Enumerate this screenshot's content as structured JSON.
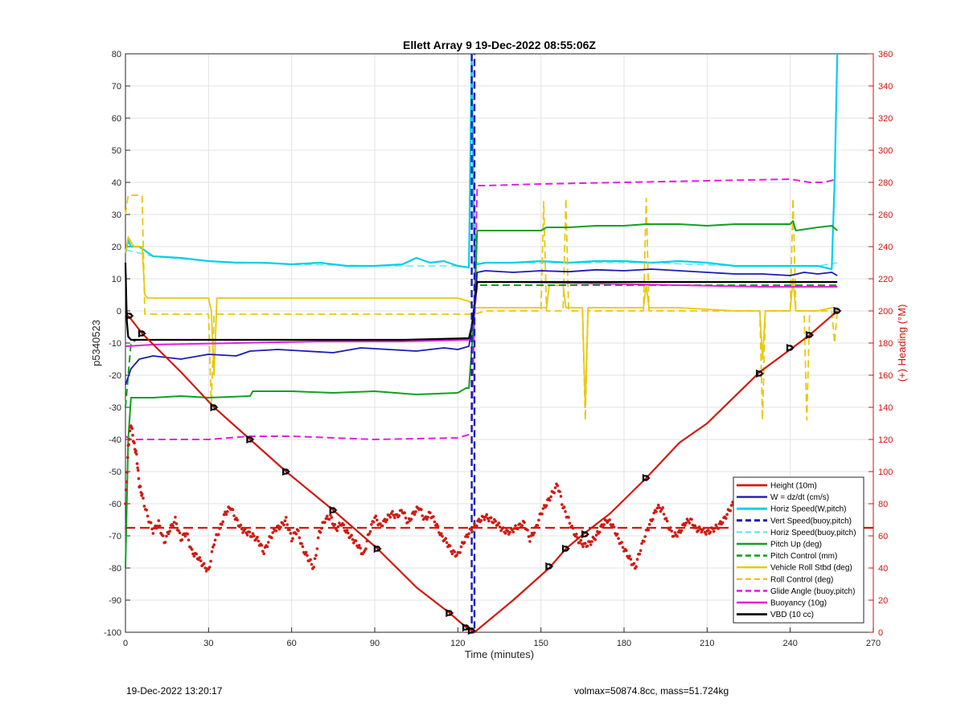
{
  "footer": {
    "timestamp": "19-Dec-2022 13:20:17",
    "params": "volmax=50874.8cc, mass=51.724kg"
  },
  "chart_data": {
    "type": "line",
    "title": "Ellett Array 9 19-Dec-2022 08:55:06Z",
    "xlabel": "Time (minutes)",
    "ylabel": "p5340523",
    "ylabel_right": "(+) Heading (°M)",
    "xlim": [
      0,
      270
    ],
    "ylim": [
      -100,
      80
    ],
    "ylim_right": [
      0,
      360
    ],
    "xticks": [
      "0",
      "30",
      "60",
      "90",
      "120",
      "150",
      "180",
      "210",
      "240",
      "270"
    ],
    "yticks": [
      "-100",
      "-90",
      "-80",
      "-70",
      "-60",
      "-50",
      "-40",
      "-30",
      "-20",
      "-10",
      "0",
      "10",
      "20",
      "30",
      "40",
      "50",
      "60",
      "70",
      "80"
    ],
    "yticks_right": [
      "0",
      "20",
      "40",
      "60",
      "80",
      "100",
      "120",
      "140",
      "160",
      "180",
      "200",
      "220",
      "240",
      "260",
      "280",
      "300",
      "320",
      "340",
      "360"
    ],
    "grid": true,
    "legend_position": "bottom-right",
    "series": [
      {
        "name": "Height (10m)",
        "color": "#d01a10",
        "style": "solid",
        "width": 2.2,
        "x": [
          0,
          1.5,
          6,
          20,
          32,
          45,
          58,
          75,
          91,
          105,
          117,
          123,
          126,
          140,
          153,
          159,
          166,
          175,
          188,
          200,
          210,
          229,
          240,
          247,
          257
        ],
        "y": [
          -1,
          -2,
          -7,
          -19,
          -30,
          -40,
          -50,
          -62,
          -74,
          -86,
          -94,
          -98.5,
          -100,
          -90,
          -80,
          -74,
          -69,
          -63,
          -52,
          -41,
          -35,
          -19,
          -12,
          -7.5,
          0
        ],
        "markers": [
          [
            1.5,
            -1.5
          ],
          [
            6,
            -7
          ],
          [
            32,
            -30
          ],
          [
            45,
            -40
          ],
          [
            58,
            -50
          ],
          [
            75,
            -62
          ],
          [
            91,
            -74
          ],
          [
            117,
            -94
          ],
          [
            123,
            -98.5
          ],
          [
            125,
            -99.5
          ],
          [
            153,
            -79.5
          ],
          [
            159,
            -74
          ],
          [
            166,
            -69.5
          ],
          [
            188,
            -52
          ],
          [
            229,
            -19.5
          ],
          [
            240,
            -11.5
          ],
          [
            247,
            -7.5
          ],
          [
            257,
            0
          ]
        ]
      },
      {
        "name": "W = dz/dt (cm/s)",
        "color": "#1a1ab8",
        "style": "solid",
        "width": 1.8,
        "x": [
          0,
          2,
          5,
          10,
          20,
          30,
          40,
          45,
          55,
          65,
          75,
          85,
          95,
          105,
          115,
          120,
          124,
          126,
          127,
          130,
          140,
          150,
          160,
          170,
          180,
          190,
          200,
          210,
          220,
          230,
          240,
          245,
          250,
          255,
          257
        ],
        "y": [
          -23,
          -18,
          -15,
          -14,
          -15,
          -13.5,
          -14,
          -12.5,
          -12,
          -12.5,
          -13,
          -11.5,
          -12,
          -12.5,
          -11.5,
          -12,
          -11,
          0,
          12,
          12.5,
          12,
          12.5,
          12.2,
          12.8,
          12.5,
          13,
          12.5,
          12,
          11.5,
          11.5,
          11,
          12,
          11.5,
          12,
          11
        ]
      },
      {
        "name": "Horiz Speed(W,pitch)",
        "color": "#00d0e8",
        "style": "solid",
        "width": 2.2,
        "x": [
          0,
          1,
          2,
          5,
          10,
          20,
          30,
          40,
          50,
          60,
          70,
          80,
          90,
          100,
          105,
          110,
          115,
          120,
          124,
          125,
          126,
          127,
          130,
          140,
          150,
          160,
          170,
          180,
          190,
          200,
          210,
          220,
          230,
          240,
          250,
          255,
          256,
          257
        ],
        "y": [
          18,
          22,
          20,
          20,
          17,
          16.5,
          15.5,
          15,
          15,
          14.5,
          15,
          14,
          14,
          14.5,
          16.5,
          15,
          15.5,
          14,
          13.5,
          80,
          15,
          14.5,
          15,
          15,
          15.5,
          15,
          15.5,
          15.5,
          15,
          15.5,
          15,
          14,
          14,
          14,
          14,
          13,
          40,
          80
        ]
      },
      {
        "name": "Vert Speed(buoy,pitch)",
        "color": "#1a1ab8",
        "style": "dashed",
        "width": 2.4,
        "x": [
          125,
          125,
          126,
          126
        ],
        "y": [
          80,
          -100,
          -100,
          80
        ]
      },
      {
        "name": "Horiz Speed(buoy,pitch)",
        "color": "#60e8f0",
        "style": "dashed",
        "width": 1.6,
        "x": [
          0,
          10,
          30,
          60,
          90,
          120,
          124,
          126,
          130,
          160,
          190,
          220,
          250,
          257
        ],
        "y": [
          19,
          17,
          15.5,
          14.5,
          14,
          14,
          13.5,
          15,
          15,
          15,
          15,
          14,
          14,
          15
        ]
      },
      {
        "name": "Pitch Up (deg)",
        "color": "#10a020",
        "style": "solid",
        "width": 2,
        "x": [
          0,
          1,
          2,
          4,
          10,
          20,
          30,
          45,
          46,
          60,
          75,
          90,
          105,
          120,
          123,
          124,
          126,
          127,
          130,
          140,
          150,
          152,
          160,
          170,
          180,
          188,
          189,
          200,
          210,
          220,
          230,
          240,
          241,
          242,
          250,
          255,
          257
        ],
        "y": [
          -80,
          -40,
          -27,
          -27,
          -27,
          -26.5,
          -27,
          -26.5,
          -25,
          -25,
          -25.5,
          -25,
          -26,
          -25.5,
          -24,
          -24,
          0,
          25,
          25,
          25,
          25,
          26,
          26,
          26.5,
          26.5,
          27,
          27,
          27,
          26.5,
          27,
          27,
          27,
          28,
          25,
          26,
          26.5,
          25
        ]
      },
      {
        "name": "Pitch Control (mm)",
        "color": "#10a020",
        "style": "dashed",
        "width": 2,
        "x": [
          0,
          2,
          4,
          30,
          60,
          90,
          120,
          124,
          126,
          127,
          140,
          170,
          200,
          230,
          257
        ],
        "y": [
          -30,
          -10,
          -9,
          -9,
          -9,
          -9,
          -9,
          -9,
          0,
          8,
          8,
          8,
          8,
          8,
          8
        ]
      },
      {
        "name": "Vehicle Roll Stbd (deg)",
        "color": "#e8c810",
        "style": "solid",
        "width": 1.8,
        "x": [
          0,
          1,
          3,
          6,
          7,
          8,
          15,
          30,
          31,
          32,
          33,
          45,
          60,
          75,
          90,
          105,
          120,
          124,
          125,
          126,
          130,
          140,
          150,
          152,
          153,
          158,
          159,
          160,
          165,
          166,
          167,
          180,
          187,
          188,
          189,
          200,
          220,
          229,
          230,
          231,
          240,
          241,
          242,
          250,
          255,
          257
        ],
        "y": [
          18,
          23,
          20,
          20,
          5,
          4,
          4,
          4,
          0,
          -20,
          4,
          4,
          4,
          4,
          4,
          4,
          4,
          3,
          2,
          1,
          1,
          1,
          1,
          1,
          8,
          8,
          1,
          1,
          1,
          -30,
          1,
          1,
          1,
          8,
          1,
          1,
          0,
          0,
          -15,
          0,
          0,
          10,
          0,
          0,
          1,
          1
        ]
      },
      {
        "name": "Roll Control (deg)",
        "color": "#e8c810",
        "style": "dashed",
        "width": 1.8,
        "x": [
          0,
          1,
          3,
          6,
          7,
          15,
          30,
          31,
          32,
          33,
          45,
          60,
          75,
          90,
          105,
          120,
          124,
          125,
          126,
          130,
          150,
          151,
          152,
          158,
          159,
          160,
          165,
          166,
          167,
          187,
          188,
          189,
          229,
          230,
          231,
          240,
          241,
          242,
          245,
          246,
          247,
          255,
          256,
          257
        ],
        "y": [
          30,
          36,
          36,
          36,
          -1,
          -1,
          -1,
          -30,
          -1,
          -1,
          -1,
          -1,
          -1,
          -1,
          -1,
          -1,
          -1,
          -1,
          -1,
          0,
          0,
          34,
          0,
          0,
          35,
          0,
          0,
          -34,
          0,
          0,
          35,
          0,
          0,
          -34,
          0,
          0,
          35,
          0,
          0,
          -34,
          0,
          0,
          -10,
          0
        ]
      },
      {
        "name": "Glide Angle (buoy,pitch)",
        "color": "#e020e0",
        "style": "dashed",
        "width": 2,
        "x": [
          0,
          2,
          5,
          30,
          45,
          60,
          90,
          120,
          124,
          125,
          126,
          127,
          130,
          150,
          180,
          210,
          240,
          247,
          252,
          257
        ],
        "y": [
          -39,
          -40,
          -40,
          -40,
          -39,
          -39,
          -40,
          -39.5,
          -38.5,
          -38,
          0,
          39,
          39,
          39.5,
          40,
          40.5,
          41,
          40,
          40,
          41
        ]
      },
      {
        "name": "Buoyancy (10g)",
        "color": "#e020e0",
        "style": "solid",
        "width": 2,
        "x": [
          0,
          10,
          40,
          70,
          100,
          124,
          126,
          127,
          140,
          170,
          200,
          230,
          257
        ],
        "y": [
          -11,
          -10.5,
          -10,
          -9.5,
          -9.5,
          -9,
          0,
          9,
          9,
          8.5,
          8,
          7.5,
          7.5
        ]
      },
      {
        "name": "VBD (10 cc)",
        "color": "#000000",
        "style": "solid",
        "width": 2.2,
        "x": [
          0,
          0.5,
          1,
          2,
          10,
          40,
          70,
          100,
          124,
          125,
          126,
          127,
          140,
          170,
          200,
          230,
          257
        ],
        "y": [
          15,
          -3,
          -8,
          -9,
          -9,
          -9,
          -9,
          -9,
          -8.5,
          -5,
          2,
          9,
          9,
          9,
          9,
          9,
          9
        ]
      }
    ],
    "heading_series": {
      "color": "#d01a10",
      "axis": "right",
      "mean_line": 65,
      "x": [
        0,
        1,
        2,
        3,
        4,
        5,
        6,
        8,
        10,
        12,
        14,
        16,
        18,
        20,
        22,
        24,
        26,
        28,
        30,
        32,
        34,
        36,
        38,
        40,
        42,
        44,
        46,
        48,
        50,
        52,
        54,
        56,
        58,
        60,
        62,
        64,
        66,
        68,
        70,
        72,
        74,
        76,
        78,
        80,
        82,
        84,
        86,
        88,
        90,
        92,
        94,
        96,
        98,
        100,
        102,
        104,
        106,
        108,
        110,
        112,
        114,
        116,
        118,
        120,
        122,
        124,
        126,
        128,
        130,
        132,
        134,
        136,
        138,
        140,
        142,
        144,
        146,
        148,
        150,
        152,
        154,
        156,
        158,
        160,
        162,
        164,
        166,
        168,
        170,
        172,
        174,
        176,
        178,
        180,
        182,
        184,
        186,
        188,
        190,
        192,
        194,
        196,
        198,
        200,
        202,
        204,
        206,
        208,
        210,
        212,
        214,
        216,
        218,
        220,
        222,
        224,
        226,
        228,
        230,
        232,
        234,
        236,
        238,
        240,
        242,
        244,
        246,
        248,
        250,
        252,
        254,
        257
      ],
      "y": [
        80,
        115,
        130,
        118,
        110,
        92,
        85,
        72,
        63,
        68,
        56,
        64,
        70,
        58,
        62,
        50,
        47,
        42,
        38,
        56,
        64,
        74,
        78,
        70,
        64,
        62,
        60,
        57,
        50,
        58,
        64,
        66,
        70,
        58,
        64,
        52,
        46,
        40,
        62,
        70,
        72,
        64,
        68,
        62,
        58,
        54,
        48,
        62,
        72,
        66,
        70,
        74,
        72,
        76,
        68,
        74,
        78,
        70,
        74,
        68,
        60,
        56,
        50,
        48,
        56,
        62,
        66,
        70,
        72,
        70,
        68,
        64,
        62,
        64,
        66,
        68,
        58,
        64,
        74,
        80,
        86,
        92,
        78,
        70,
        62,
        56,
        54,
        56,
        60,
        66,
        70,
        66,
        58,
        52,
        46,
        40,
        52,
        62,
        70,
        78,
        76,
        66,
        60,
        62,
        68,
        70,
        64,
        64,
        62,
        64,
        66,
        70,
        76,
        82,
        86,
        72,
        66,
        68,
        78,
        90,
        78,
        70,
        66,
        64,
        60,
        66,
        54,
        40,
        44,
        60,
        64,
        66
      ]
    }
  }
}
